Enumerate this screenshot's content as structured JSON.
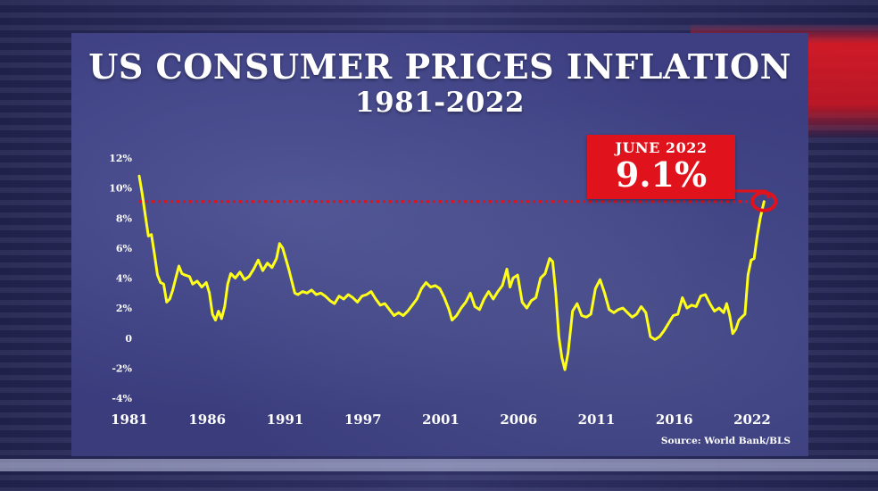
{
  "header": {
    "title": "US CONSUMER PRICES INFLATION",
    "subtitle": "1981-2022"
  },
  "callout": {
    "date": "JUNE 2022",
    "value": "9.1%"
  },
  "source": "Source: World Bank/BLS",
  "colors": {
    "line": "#ffff1a",
    "callout": "#e0121c",
    "reference_line": "#e0121c"
  },
  "chart_data": {
    "type": "line",
    "title": "US CONSUMER PRICES INFLATION",
    "subtitle": "1981-2022",
    "x_tick_labels": [
      "1981",
      "1986",
      "1991",
      "1997",
      "2001",
      "2006",
      "2011",
      "2016",
      "2022"
    ],
    "y_tick_labels": [
      "12%",
      "10%",
      "8%",
      "6%",
      "4%",
      "2%",
      "0",
      "-2%",
      "-4%"
    ],
    "y_ticks": [
      12,
      10,
      8,
      6,
      4,
      2,
      0,
      -2,
      -4
    ],
    "xlim": [
      1981.5,
      2022.9
    ],
    "ylim": [
      -4,
      12
    ],
    "grid": false,
    "reference_line": {
      "y": 9.1,
      "style": "dotted"
    },
    "annotation": {
      "x": 2022.45,
      "y": 9.1,
      "label": "JUNE 2022 9.1%"
    },
    "series": [
      {
        "x": [
          1981.5,
          1981.7,
          1981.9,
          1982.1,
          1982.3,
          1982.5,
          1982.7,
          1982.9,
          1983.1,
          1983.3,
          1983.5,
          1983.7,
          1983.9,
          1984.1,
          1984.3,
          1984.5,
          1984.8,
          1985.0,
          1985.3,
          1985.6,
          1985.9,
          1986.1,
          1986.3,
          1986.5,
          1986.7,
          1986.9,
          1987.1,
          1987.3,
          1987.5,
          1987.8,
          1988.1,
          1988.4,
          1988.7,
          1989.0,
          1989.3,
          1989.6,
          1989.9,
          1990.2,
          1990.5,
          1990.7,
          1990.9,
          1991.1,
          1991.3,
          1991.5,
          1991.7,
          1991.9,
          1992.2,
          1992.5,
          1992.8,
          1993.1,
          1993.4,
          1993.7,
          1994.0,
          1994.3,
          1994.6,
          1994.9,
          1995.2,
          1995.5,
          1995.8,
          1996.1,
          1996.4,
          1996.7,
          1997.0,
          1997.3,
          1997.6,
          1997.9,
          1998.2,
          1998.5,
          1998.8,
          1999.1,
          1999.4,
          1999.7,
          2000.0,
          2000.3,
          2000.6,
          2000.9,
          2001.2,
          2001.5,
          2001.8,
          2002.0,
          2002.3,
          2002.6,
          2002.9,
          2003.2,
          2003.5,
          2003.8,
          2004.1,
          2004.4,
          2004.7,
          2005.0,
          2005.3,
          2005.6,
          2005.8,
          2006.0,
          2006.3,
          2006.6,
          2006.9,
          2007.2,
          2007.5,
          2007.8,
          2008.1,
          2008.4,
          2008.6,
          2008.8,
          2009.0,
          2009.2,
          2009.4,
          2009.6,
          2009.9,
          2010.2,
          2010.5,
          2010.8,
          2011.1,
          2011.4,
          2011.7,
          2012.0,
          2012.3,
          2012.6,
          2012.9,
          2013.2,
          2013.5,
          2013.8,
          2014.1,
          2014.4,
          2014.7,
          2015.0,
          2015.3,
          2015.6,
          2015.9,
          2016.2,
          2016.5,
          2016.8,
          2017.1,
          2017.4,
          2017.7,
          2018.0,
          2018.3,
          2018.6,
          2018.9,
          2019.2,
          2019.5,
          2019.8,
          2020.0,
          2020.2,
          2020.4,
          2020.6,
          2020.8,
          2021.0,
          2021.2,
          2021.4,
          2021.6,
          2021.8,
          2022.0,
          2022.2,
          2022.45
        ],
        "y": [
          10.8,
          9.6,
          8.2,
          6.8,
          6.9,
          5.6,
          4.2,
          3.7,
          3.6,
          2.4,
          2.6,
          3.2,
          4.0,
          4.8,
          4.3,
          4.2,
          4.1,
          3.6,
          3.8,
          3.4,
          3.7,
          3.0,
          1.6,
          1.2,
          1.8,
          1.3,
          2.1,
          3.6,
          4.3,
          4.0,
          4.4,
          3.9,
          4.1,
          4.6,
          5.2,
          4.5,
          5.0,
          4.7,
          5.3,
          6.3,
          6.0,
          5.3,
          4.6,
          3.8,
          3.0,
          2.9,
          3.1,
          3.0,
          3.2,
          2.9,
          3.0,
          2.8,
          2.5,
          2.3,
          2.8,
          2.6,
          2.9,
          2.7,
          2.4,
          2.8,
          2.9,
          3.1,
          2.6,
          2.2,
          2.3,
          1.9,
          1.5,
          1.7,
          1.5,
          1.8,
          2.2,
          2.6,
          3.3,
          3.7,
          3.4,
          3.5,
          3.3,
          2.7,
          1.9,
          1.2,
          1.5,
          2.0,
          2.4,
          3.0,
          2.1,
          1.9,
          2.6,
          3.1,
          2.6,
          3.1,
          3.5,
          4.6,
          3.4,
          4.0,
          4.2,
          2.4,
          2.0,
          2.5,
          2.7,
          4.0,
          4.3,
          5.3,
          5.1,
          3.0,
          0.1,
          -1.3,
          -2.1,
          -1.0,
          1.8,
          2.3,
          1.5,
          1.4,
          1.6,
          3.3,
          3.9,
          3.0,
          1.9,
          1.7,
          1.9,
          2.0,
          1.7,
          1.4,
          1.6,
          2.1,
          1.7,
          0.1,
          -0.1,
          0.1,
          0.5,
          1.0,
          1.5,
          1.6,
          2.7,
          2.0,
          2.2,
          2.1,
          2.8,
          2.9,
          2.3,
          1.8,
          2.0,
          1.7,
          2.3,
          1.5,
          0.3,
          0.6,
          1.2,
          1.4,
          1.6,
          4.2,
          5.2,
          5.3,
          6.8,
          8.0,
          9.1
        ]
      }
    ]
  }
}
